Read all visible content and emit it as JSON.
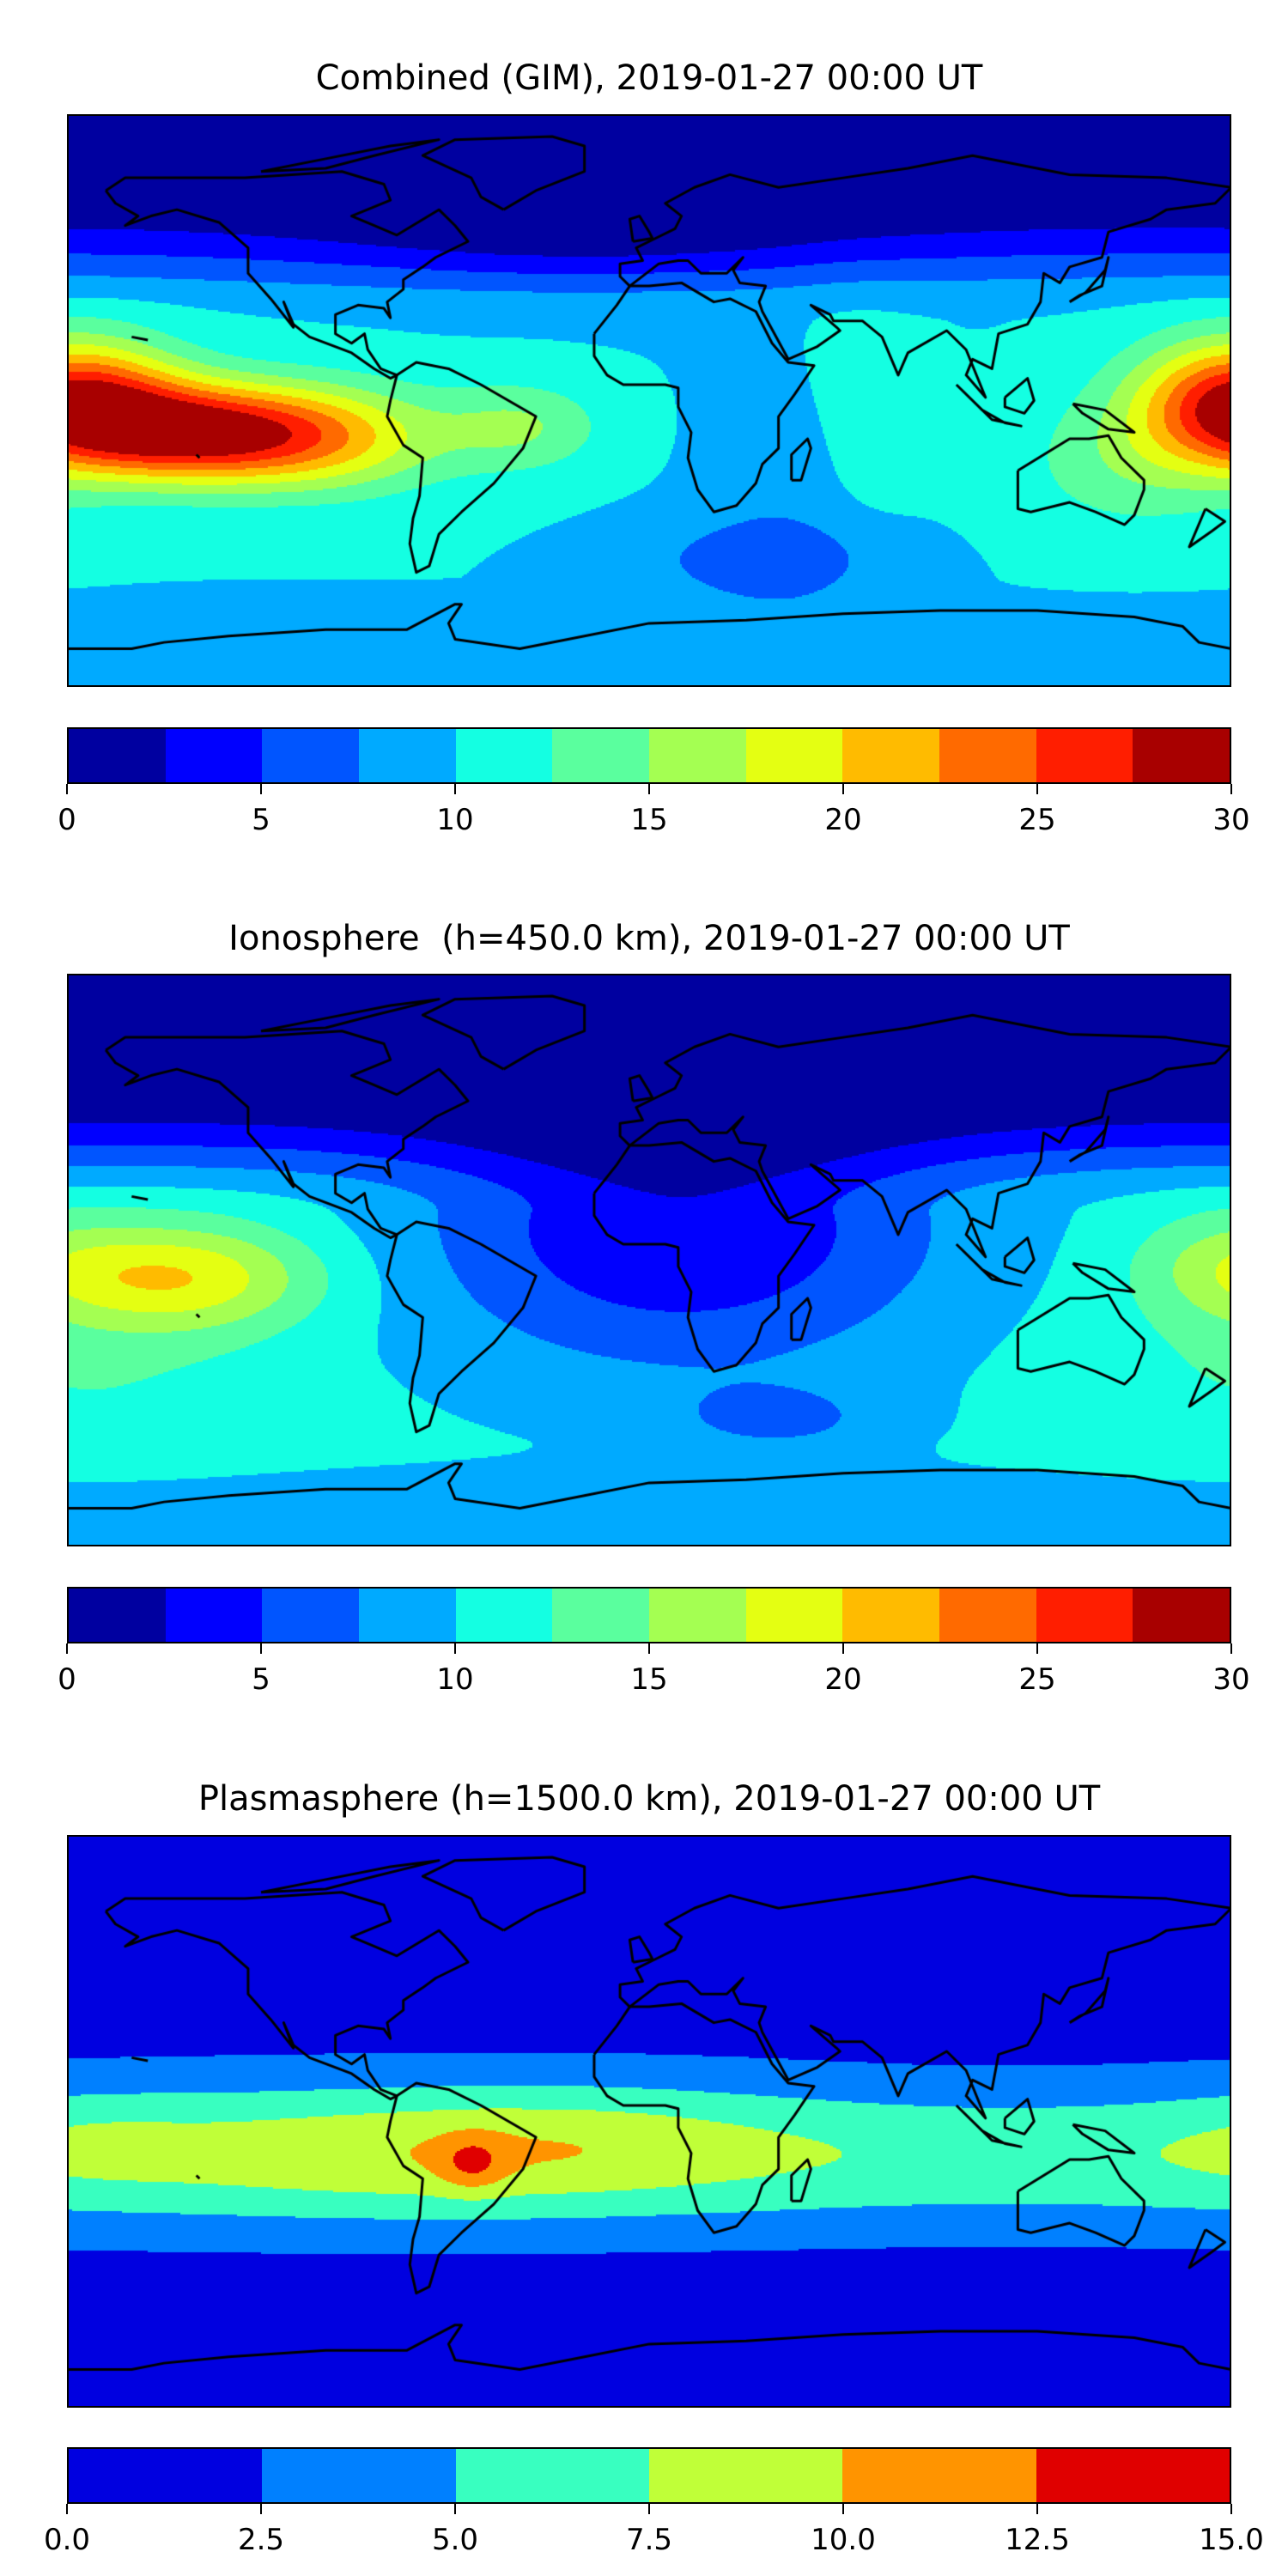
{
  "panels": [
    {
      "title": "Combined (GIM), 2019-01-27 00:00 UT",
      "colorbar": {
        "ticks": [
          "0",
          "5",
          "10",
          "15",
          "20",
          "25",
          "30"
        ],
        "colors": [
          "#0000a0",
          "#0000ff",
          "#0055ff",
          "#00aaff",
          "#14ffe2",
          "#5aff9e",
          "#a4ff52",
          "#e4ff12",
          "#ffbb00",
          "#ff6a00",
          "#ff1e00",
          "#a80000"
        ]
      }
    },
    {
      "title": "Ionosphere  (h=450.0 km), 2019-01-27 00:00 UT",
      "colorbar": {
        "ticks": [
          "0",
          "5",
          "10",
          "15",
          "20",
          "25",
          "30"
        ],
        "colors": [
          "#0000a0",
          "#0000ff",
          "#0055ff",
          "#00aaff",
          "#14ffe2",
          "#5aff9e",
          "#a4ff52",
          "#e4ff12",
          "#ffbb00",
          "#ff6a00",
          "#ff1e00",
          "#a80000"
        ]
      }
    },
    {
      "title": "Plasmasphere (h=1500.0 km), 2019-01-27 00:00 UT",
      "colorbar": {
        "ticks": [
          "0.0",
          "2.5",
          "5.0",
          "7.5",
          "10.0",
          "12.5",
          "15.0"
        ],
        "colors": [
          "#0000e0",
          "#0080ff",
          "#38ffc0",
          "#c0ff38",
          "#ff9400",
          "#e00000"
        ]
      }
    }
  ],
  "chart_data": [
    {
      "type": "heatmap",
      "title": "Combined (GIM), 2019-01-27 00:00 UT",
      "vmin": 0,
      "vmax": 30,
      "levels": [
        0,
        2.5,
        5,
        7.5,
        10,
        12.5,
        15,
        17.5,
        20,
        22.5,
        25,
        27.5,
        30
      ],
      "lon_range": [
        -180,
        180
      ],
      "lat_range": [
        -90,
        90
      ],
      "max_region": "central Pacific (~-140°E, -10°N), 27.5-30"
    },
    {
      "type": "heatmap",
      "title": "Ionosphere  (h=450.0 km), 2019-01-27 00:00 UT",
      "vmin": 0,
      "vmax": 30,
      "levels": [
        0,
        2.5,
        5,
        7.5,
        10,
        12.5,
        15,
        17.5,
        20,
        22.5,
        25,
        27.5,
        30
      ],
      "lon_range": [
        -180,
        180
      ],
      "lat_range": [
        -90,
        90
      ],
      "max_region": "central Pacific (~-150°E, -5°N), 20-22.5"
    },
    {
      "type": "heatmap",
      "title": "Plasmasphere (h=1500.0 km), 2019-01-27 00:00 UT",
      "vmin": 0,
      "vmax": 15,
      "levels": [
        0,
        2.5,
        5,
        7.5,
        10,
        12.5,
        15
      ],
      "lon_range": [
        -180,
        180
      ],
      "lat_range": [
        -90,
        90
      ],
      "max_region": "South America (~-55°E, -13°N), 10-12.5"
    }
  ]
}
